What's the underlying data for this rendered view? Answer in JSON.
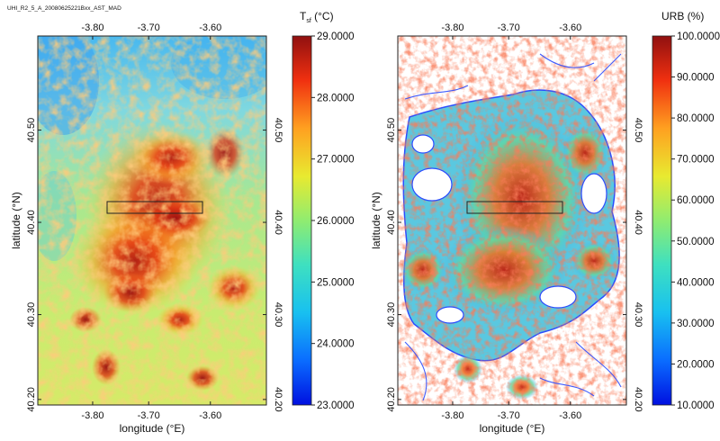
{
  "file_label": "UHI_R2_5_A_20080625221Bxx_AST_MAD",
  "panels": [
    {
      "id": "tsf",
      "colorbar": {
        "title_main": "T",
        "title_sub": "sf",
        "title_unit": " (°C)",
        "ticks": [
          "29.0000",
          "28.0000",
          "27.0000",
          "26.0000",
          "25.0000",
          "24.0000",
          "23.0000"
        ]
      },
      "x_ticks_top": [
        "-3.80",
        "-3.70",
        "-3.60"
      ],
      "x_ticks_bottom": [
        "-3.80",
        "-3.70",
        "-3.60"
      ],
      "y_ticks_left": [
        "40.50",
        "40.40",
        "40.30",
        "40.20"
      ],
      "y_ticks_right": [
        "40.50",
        "40.40",
        "40.30",
        "40.20"
      ],
      "xlabel": "longitude (°E)",
      "ylabel": "latitude (°N)"
    },
    {
      "id": "urb",
      "colorbar": {
        "title_main": "URB (%)",
        "title_sub": "",
        "title_unit": "",
        "ticks": [
          "100.0000",
          "90.0000",
          "80.0000",
          "70.0000",
          "60.0000",
          "50.0000",
          "40.0000",
          "30.0000",
          "20.0000",
          "10.0000"
        ]
      },
      "x_ticks_top": [
        "-3.80",
        "-3.70",
        "-3.60"
      ],
      "x_ticks_bottom": [
        "-3.80",
        "-3.70",
        "-3.60"
      ],
      "y_ticks_left": [
        "40.50",
        "40.40",
        "40.30",
        "40.20"
      ],
      "y_ticks_right": [
        "40.50",
        "40.40",
        "40.30",
        "40.20"
      ],
      "xlabel": "longitude (°E)",
      "ylabel": "latitude (°N)"
    }
  ]
}
